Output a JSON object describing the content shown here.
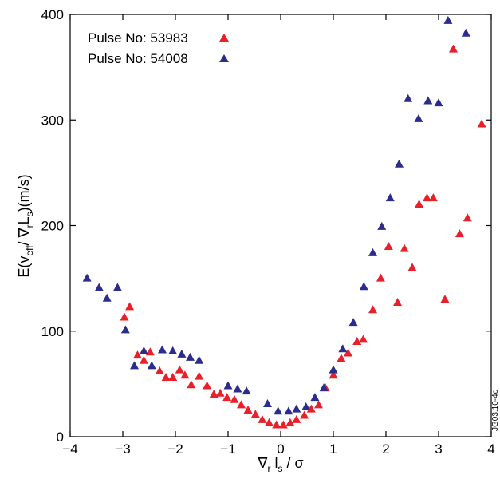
{
  "chart_data": {
    "type": "scatter",
    "title": "",
    "xlabel": "∇r ls / σ",
    "ylabel": "E(veff / ∇rLs)(m/s)",
    "xlim": [
      -4,
      4
    ],
    "ylim": [
      0,
      400
    ],
    "x_ticks": [
      -4,
      -3,
      -2,
      -1,
      0,
      1,
      2,
      3,
      4
    ],
    "x_tick_labels": [
      "−4",
      "−3",
      "−2",
      "−1",
      "0",
      "1",
      "2",
      "3",
      "4"
    ],
    "y_ticks": [
      0,
      100,
      200,
      300,
      400
    ],
    "y_tick_labels": [
      "0",
      "100",
      "200",
      "300",
      "400"
    ],
    "grid": false,
    "legend_position": "top-left",
    "code": "JG03.10-4c",
    "series": [
      {
        "name": "Pulse No: 53983",
        "color": "#e8202a",
        "marker": "triangle",
        "points": [
          [
            -2.97,
            113
          ],
          [
            -2.87,
            123
          ],
          [
            -2.72,
            77
          ],
          [
            -2.6,
            72
          ],
          [
            -2.48,
            80
          ],
          [
            -2.3,
            62
          ],
          [
            -2.18,
            56
          ],
          [
            -2.05,
            56
          ],
          [
            -1.92,
            63
          ],
          [
            -1.82,
            58
          ],
          [
            -1.7,
            49
          ],
          [
            -1.55,
            57
          ],
          [
            -1.4,
            48
          ],
          [
            -1.27,
            40
          ],
          [
            -1.15,
            41
          ],
          [
            -1.02,
            37
          ],
          [
            -0.88,
            35
          ],
          [
            -0.75,
            30
          ],
          [
            -0.62,
            25
          ],
          [
            -0.48,
            21
          ],
          [
            -0.35,
            16
          ],
          [
            -0.22,
            13
          ],
          [
            -0.08,
            11
          ],
          [
            0.05,
            11
          ],
          [
            0.18,
            13
          ],
          [
            0.3,
            16
          ],
          [
            0.45,
            20
          ],
          [
            0.58,
            26
          ],
          [
            0.72,
            30
          ],
          [
            0.85,
            46
          ],
          [
            1.0,
            58
          ],
          [
            1.15,
            74
          ],
          [
            1.28,
            79
          ],
          [
            1.45,
            90
          ],
          [
            1.57,
            92
          ],
          [
            1.75,
            120
          ],
          [
            1.9,
            150
          ],
          [
            2.05,
            180
          ],
          [
            2.22,
            127
          ],
          [
            2.35,
            178
          ],
          [
            2.5,
            160
          ],
          [
            2.63,
            220
          ],
          [
            2.78,
            226
          ],
          [
            2.9,
            226
          ],
          [
            3.12,
            130
          ],
          [
            3.28,
            367
          ],
          [
            3.4,
            192
          ],
          [
            3.55,
            207
          ],
          [
            3.82,
            296
          ]
        ]
      },
      {
        "name": "Pulse No: 54008",
        "color": "#2b2c8c",
        "marker": "triangle",
        "points": [
          [
            -3.68,
            150
          ],
          [
            -3.45,
            141
          ],
          [
            -3.3,
            131
          ],
          [
            -3.1,
            141
          ],
          [
            -2.95,
            101
          ],
          [
            -2.78,
            67
          ],
          [
            -2.6,
            81
          ],
          [
            -2.45,
            67
          ],
          [
            -2.25,
            82
          ],
          [
            -2.05,
            81
          ],
          [
            -1.88,
            78
          ],
          [
            -1.72,
            75
          ],
          [
            -1.55,
            72
          ],
          [
            -1.0,
            48
          ],
          [
            -0.82,
            45
          ],
          [
            -0.65,
            43
          ],
          [
            -0.25,
            31
          ],
          [
            -0.05,
            24
          ],
          [
            0.15,
            24
          ],
          [
            0.3,
            26
          ],
          [
            0.48,
            28
          ],
          [
            0.65,
            37
          ],
          [
            0.82,
            46
          ],
          [
            1.0,
            63
          ],
          [
            1.18,
            83
          ],
          [
            1.38,
            108
          ],
          [
            1.58,
            142
          ],
          [
            1.75,
            174
          ],
          [
            1.92,
            199
          ],
          [
            2.08,
            226
          ],
          [
            2.25,
            258
          ],
          [
            2.42,
            320
          ],
          [
            2.62,
            301
          ],
          [
            2.8,
            318
          ],
          [
            3.0,
            316
          ],
          [
            3.18,
            394
          ],
          [
            3.52,
            382
          ]
        ]
      }
    ]
  }
}
